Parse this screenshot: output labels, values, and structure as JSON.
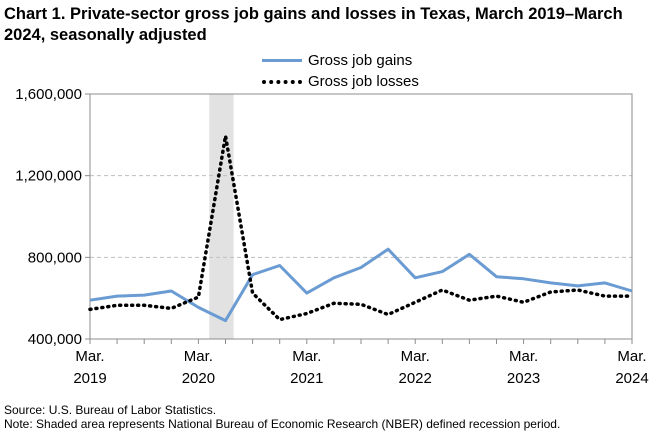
{
  "title": "Chart 1. Private-sector gross job gains and losses in Texas, March 2019–March 2024, seasonally adjusted",
  "legend": {
    "gains_label": "Gross job gains",
    "losses_label": "Gross job losses"
  },
  "footer": {
    "source": "Source: U.S. Bureau of Labor Statistics.",
    "note": "Note: Shaded area represents National Bureau of Economic Research (NBER) defined  recession period."
  },
  "colors": {
    "gains": "#6A9BD2",
    "losses": "#000000",
    "recession": "#E2E2E2",
    "grid": "#BFBFBF"
  },
  "chart_data": {
    "type": "line",
    "title": "Chart 1. Private-sector gross job gains and losses in Texas, March 2019–March 2024, seasonally adjusted",
    "xlabel": "",
    "ylabel": "",
    "ylim": [
      400000,
      1600000
    ],
    "yticks": [
      "1,600,000",
      "1,200,000",
      "800,000",
      "400,000"
    ],
    "ytick_values": [
      1600000,
      1200000,
      800000,
      400000
    ],
    "grid": true,
    "legend_position": "top-right",
    "recession_shading": {
      "start_index": 4.4,
      "end_index": 5.3
    },
    "x_tick_labels": [
      {
        "month": "Mar.",
        "year": "2019",
        "index": 0
      },
      {
        "month": "Mar.",
        "year": "2020",
        "index": 4
      },
      {
        "month": "Mar.",
        "year": "2021",
        "index": 8
      },
      {
        "month": "Mar.",
        "year": "2022",
        "index": 12
      },
      {
        "month": "Mar.",
        "year": "2023",
        "index": 16
      },
      {
        "month": "Mar.",
        "year": "2024",
        "index": 20
      }
    ],
    "series": [
      {
        "name": "Gross job gains",
        "values": [
          590000,
          610000,
          615000,
          635000,
          555000,
          490000,
          715000,
          760000,
          625000,
          700000,
          750000,
          840000,
          700000,
          730000,
          815000,
          705000,
          695000,
          675000,
          660000,
          675000,
          635000
        ]
      },
      {
        "name": "Gross job losses",
        "values": [
          545000,
          565000,
          565000,
          550000,
          605000,
          1395000,
          625000,
          495000,
          525000,
          575000,
          570000,
          520000,
          580000,
          640000,
          590000,
          610000,
          580000,
          630000,
          640000,
          610000,
          610000
        ]
      }
    ]
  }
}
